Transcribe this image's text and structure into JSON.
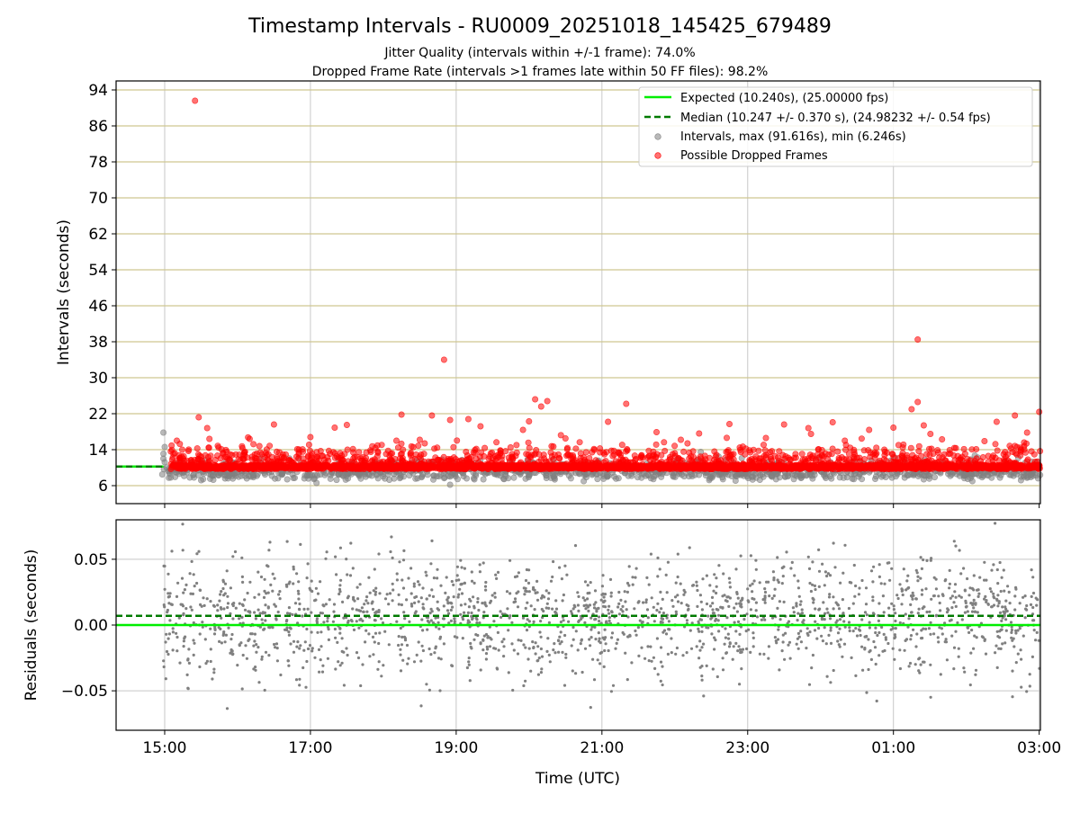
{
  "chart_data": [
    {
      "type": "scatter",
      "title": "Timestamp Intervals - RU0009_20251018_145425_679489",
      "subtitle_lines": [
        "Jitter Quality (intervals within +/-1 frame): 74.0%",
        "Dropped Frame Rate (intervals >1 frames late within 50 FF files): 98.2%"
      ],
      "ylabel": "Intervals (seconds)",
      "ylim": [
        2.0,
        96.0
      ],
      "yticks": [
        6,
        14,
        22,
        30,
        38,
        46,
        54,
        62,
        70,
        78,
        86,
        94
      ],
      "ytick_labels": [
        "6",
        "14",
        "22",
        "30",
        "38",
        "46",
        "54",
        "62",
        "70",
        "78",
        "86",
        "94"
      ],
      "xlim": [
        "2025-10-18 14:20",
        "2025-10-19 03:01"
      ],
      "grid": true,
      "legend_position": "top-right",
      "legend": [
        {
          "label": "Expected (10.240s), (25.00000 fps)",
          "kind": "solid-line",
          "color": "#00ee00"
        },
        {
          "label": "Median (10.247 +/- 0.370 s), (24.98232 +/- 0.54 fps)",
          "kind": "dashed-line",
          "color": "#007a00"
        },
        {
          "label": "Intervals, max (91.616s), min (6.246s)",
          "kind": "marker",
          "color": "#808080"
        },
        {
          "label": "Possible Dropped Frames",
          "kind": "marker",
          "color": "#ff0000"
        }
      ],
      "expected_interval": 10.24,
      "median_interval": 10.247,
      "reference_line_x_end": "2025-10-18 14:59",
      "series": [
        {
          "name": "Intervals, max (91.616s), min (6.246s)",
          "color": "#808080",
          "points": [
            {
              "t": "2025-10-18 14:59",
              "y": 17.8
            },
            {
              "t": "2025-10-18 14:59",
              "y": 13.1
            },
            {
              "t": "2025-10-18 14:59",
              "y": 12.0
            },
            {
              "t": "2025-10-18 15:00",
              "y": 14.6
            },
            {
              "t": "2025-10-18 15:00",
              "y": 11.2
            },
            {
              "t": "2025-10-18 14:58",
              "y": 8.5
            },
            {
              "t": "2025-10-18 15:05",
              "y": 7.8
            },
            {
              "t": "2025-10-18 15:30",
              "y": 7.2
            },
            {
              "t": "2025-10-18 15:40",
              "y": 7.3
            },
            {
              "t": "2025-10-18 16:55",
              "y": 7.6
            },
            {
              "t": "2025-10-18 17:05",
              "y": 6.6
            },
            {
              "t": "2025-10-18 17:40",
              "y": 8.4
            },
            {
              "t": "2025-10-18 18:05",
              "y": 7.3
            },
            {
              "t": "2025-10-18 18:55",
              "y": 6.2
            },
            {
              "t": "2025-10-18 19:15",
              "y": 7.4
            },
            {
              "t": "2025-10-18 20:45",
              "y": 7.0
            },
            {
              "t": "2025-10-18 22:50",
              "y": 7.1
            },
            {
              "t": "2025-10-18 23:10",
              "y": 7.3
            },
            {
              "t": "2025-10-19 00:45",
              "y": 7.5
            },
            {
              "t": "2025-10-19 01:25",
              "y": 7.4
            },
            {
              "t": "2025-10-19 02:05",
              "y": 7.0
            },
            {
              "t": "2025-10-19 02:45",
              "y": 7.2
            }
          ]
        },
        {
          "name": "Possible Dropped Frames",
          "color": "#ff0000",
          "points": [
            {
              "t": "2025-10-18 15:25",
              "y": 91.6
            },
            {
              "t": "2025-10-18 18:50",
              "y": 34.0
            },
            {
              "t": "2025-10-19 01:20",
              "y": 38.5
            },
            {
              "t": "2025-10-18 20:05",
              "y": 25.2
            },
            {
              "t": "2025-10-18 20:10",
              "y": 23.6
            },
            {
              "t": "2025-10-18 20:15",
              "y": 24.8
            },
            {
              "t": "2025-10-18 21:20",
              "y": 24.2
            },
            {
              "t": "2025-10-19 01:15",
              "y": 23.0
            },
            {
              "t": "2025-10-19 01:20",
              "y": 24.6
            },
            {
              "t": "2025-10-19 03:00",
              "y": 22.4
            },
            {
              "t": "2025-10-18 18:15",
              "y": 21.8
            },
            {
              "t": "2025-10-18 18:40",
              "y": 21.6
            },
            {
              "t": "2025-10-18 15:28",
              "y": 21.2
            },
            {
              "t": "2025-10-18 19:10",
              "y": 20.8
            },
            {
              "t": "2025-10-18 18:55",
              "y": 20.6
            },
            {
              "t": "2025-10-19 02:40",
              "y": 21.6
            },
            {
              "t": "2025-10-18 16:30",
              "y": 19.6
            },
            {
              "t": "2025-10-18 17:30",
              "y": 19.5
            },
            {
              "t": "2025-10-18 20:00",
              "y": 20.3
            },
            {
              "t": "2025-10-18 21:05",
              "y": 20.2
            },
            {
              "t": "2025-10-18 22:45",
              "y": 19.7
            },
            {
              "t": "2025-10-18 23:30",
              "y": 19.6
            },
            {
              "t": "2025-10-19 00:10",
              "y": 20.1
            },
            {
              "t": "2025-10-19 01:25",
              "y": 19.4
            },
            {
              "t": "2025-10-19 02:25",
              "y": 20.2
            },
            {
              "t": "2025-10-18 15:35",
              "y": 18.8
            },
            {
              "t": "2025-10-18 17:20",
              "y": 18.9
            },
            {
              "t": "2025-10-18 19:20",
              "y": 19.2
            },
            {
              "t": "2025-10-18 19:55",
              "y": 18.4
            },
            {
              "t": "2025-10-18 21:45",
              "y": 17.9
            },
            {
              "t": "2025-10-18 22:20",
              "y": 17.6
            },
            {
              "t": "2025-10-18 23:50",
              "y": 18.8
            },
            {
              "t": "2025-10-19 00:40",
              "y": 18.4
            },
            {
              "t": "2025-10-19 01:00",
              "y": 18.9
            },
            {
              "t": "2025-10-19 02:50",
              "y": 17.8
            },
            {
              "t": "2025-10-18 15:10",
              "y": 16.0
            },
            {
              "t": "2025-10-18 16:10",
              "y": 16.4
            },
            {
              "t": "2025-10-18 17:00",
              "y": 16.8
            },
            {
              "t": "2025-10-18 18:30",
              "y": 16.2
            },
            {
              "t": "2025-10-18 20:30",
              "y": 16.5
            },
            {
              "t": "2025-10-18 22:05",
              "y": 16.2
            },
            {
              "t": "2025-10-18 23:15",
              "y": 16.6
            },
            {
              "t": "2025-10-19 00:20",
              "y": 16.0
            },
            {
              "t": "2025-10-19 01:40",
              "y": 16.3
            },
            {
              "t": "2025-10-19 02:15",
              "y": 15.9
            }
          ],
          "dense_band": {
            "y_min": 9.7,
            "y_max": 10.6,
            "note": "continuous red band of points from 15:05 to 03:01"
          }
        }
      ]
    },
    {
      "type": "scatter",
      "ylabel": "Residuals (seconds)",
      "xlabel": "Time (UTC)",
      "ylim": [
        -0.08,
        0.08
      ],
      "yticks": [
        -0.05,
        0.0,
        0.05
      ],
      "ytick_labels": [
        "−0.05",
        "0.00",
        "0.05"
      ],
      "xticks": [
        "2025-10-18 15:00",
        "2025-10-18 17:00",
        "2025-10-18 19:00",
        "2025-10-18 21:00",
        "2025-10-18 23:00",
        "2025-10-19 01:00",
        "2025-10-19 03:00"
      ],
      "xtick_labels": [
        "15:00",
        "17:00",
        "19:00",
        "21:00",
        "23:00",
        "01:00",
        "03:00"
      ],
      "xlim": [
        "2025-10-18 14:20",
        "2025-10-19 03:01"
      ],
      "grid": true,
      "expected_residual": 0.0,
      "median_residual": 0.007,
      "series": [
        {
          "name": "Residuals",
          "color": "#808080",
          "distribution": {
            "center": 0.007,
            "spread": 0.022,
            "t_start": "2025-10-18 14:59",
            "t_end": "2025-10-19 03:01"
          }
        }
      ]
    }
  ]
}
